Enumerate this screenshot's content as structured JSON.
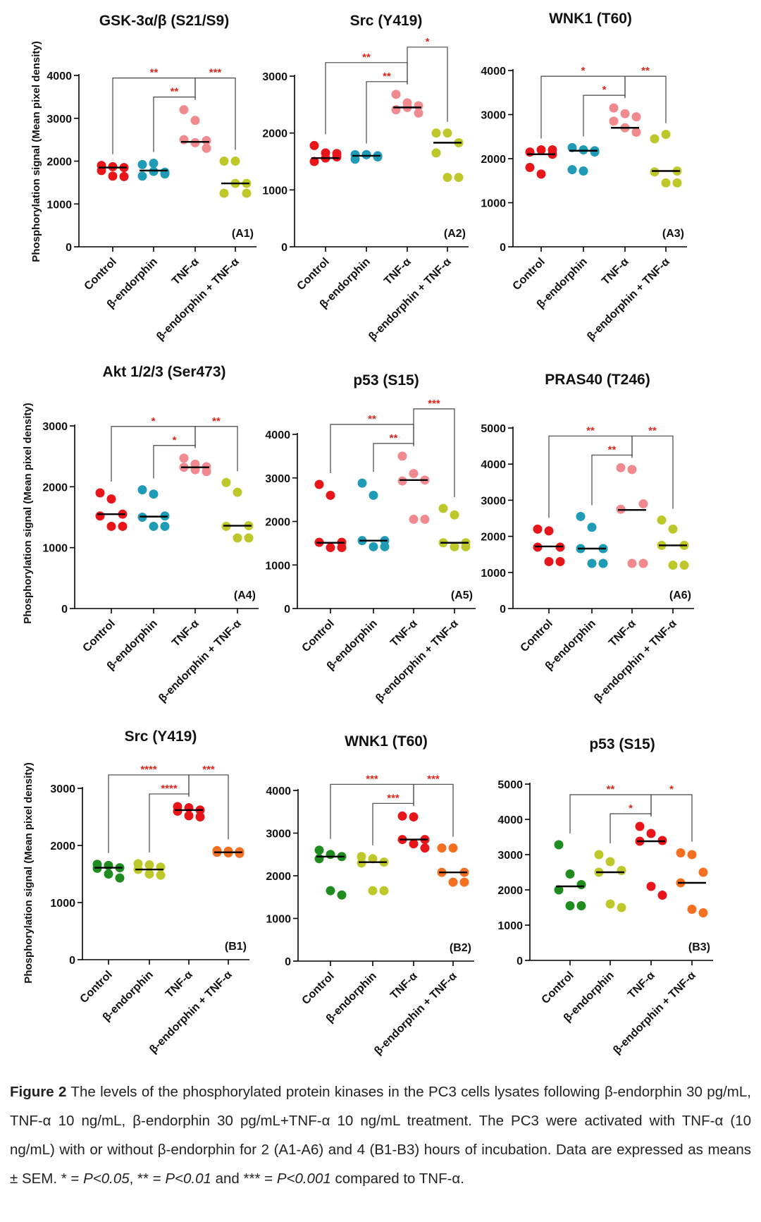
{
  "figure": {
    "ylabel": "Phosphorylation signal (Mean pixel density)",
    "categories": [
      "Control",
      "β-endorphin",
      "TNF-α",
      "β-endorphin + TNF-α"
    ]
  },
  "caption": {
    "label": "Figure 2",
    "line1": " The levels of the phosphorylated protein kinases in the PC3 cells lysates following β-endorphin 30 pg/mL, TNF-α 10 ng/mL, β-endorphin 30 pg/mL+TNF-α 10 ng/mL treatment. The PC3 were activated with TNF-α (10 ng/mL) with or without β-endorphin for 2 (A1-A6) and 4 (B1-B3) hours of incubation. Data are expressed as means ± SEM. * = ",
    "p05": "P<0.05",
    "sep1": ", ** = ",
    "p01": "P<0.01",
    "sep2": " and *** = ",
    "p001": "P<0.001",
    "end": " compared to TNF-α."
  },
  "colors": {
    "A_series": [
      "#e8161b",
      "#1f9bb6",
      "#f08a8e",
      "#bfc82a"
    ],
    "B_series": [
      "#1f8c1f",
      "#bfc82a",
      "#e8161b",
      "#f36f21"
    ],
    "significance": "#d9261c",
    "axis": "#000000"
  },
  "chart_data": [
    {
      "id": "A1",
      "type": "scatter",
      "title": "GSK-3α/β (S21/S9)",
      "panel_label": "(A1)",
      "ylim": [
        0,
        4000
      ],
      "yticks": [
        0,
        1000,
        2000,
        3000,
        4000
      ],
      "medians": [
        1850,
        1780,
        2450,
        1480
      ],
      "series": [
        {
          "values": [
            1780,
            1870,
            1850,
            1900,
            1650,
            1640
          ]
        },
        {
          "values": [
            1920,
            1760,
            1740,
            1650,
            1950,
            1700
          ]
        },
        {
          "values": [
            3200,
            2950,
            2480,
            2500,
            2430,
            2300
          ]
        },
        {
          "values": [
            2000,
            2000,
            1480,
            1250,
            1480,
            1250
          ]
        }
      ],
      "brackets": [
        {
          "from": 1,
          "to": 3,
          "level": 1,
          "stars": "**"
        },
        {
          "from": 2,
          "to": 3,
          "level": 0,
          "stars": "**"
        },
        {
          "from": 3,
          "to": 4,
          "level": 1,
          "stars": "***"
        }
      ]
    },
    {
      "id": "A2",
      "type": "scatter",
      "title": "Src (Y419)",
      "panel_label": "(A2)",
      "ylim": [
        0,
        3000
      ],
      "yticks": [
        0,
        1000,
        2000,
        3000
      ],
      "medians": [
        1560,
        1600,
        2450,
        1830
      ],
      "series": [
        {
          "values": [
            1780,
            1650,
            1580,
            1500,
            1560,
            1640
          ]
        },
        {
          "values": [
            1620,
            1620,
            1580,
            1540,
            1620,
            1600
          ]
        },
        {
          "values": [
            2680,
            2530,
            2480,
            2410,
            2450,
            2350
          ]
        },
        {
          "values": [
            2000,
            2000,
            1830,
            1650,
            1220,
            1220
          ]
        }
      ],
      "brackets": [
        {
          "from": 1,
          "to": 3,
          "level": 1,
          "stars": "**"
        },
        {
          "from": 2,
          "to": 3,
          "level": 0,
          "stars": "**"
        },
        {
          "from": 3,
          "to": 4,
          "level": 2,
          "stars": "*"
        }
      ]
    },
    {
      "id": "A3",
      "type": "scatter",
      "title": "WNK1 (T60)",
      "panel_label": "(A3)",
      "ylim": [
        0,
        4000
      ],
      "yticks": [
        0,
        1000,
        2000,
        3000,
        4000
      ],
      "medians": [
        2100,
        2180,
        2700,
        1720
      ],
      "series": [
        {
          "values": [
            2150,
            2200,
            2200,
            1800,
            1650,
            2100
          ]
        },
        {
          "values": [
            2250,
            2200,
            2150,
            1750,
            1720,
            2180
          ]
        },
        {
          "values": [
            3150,
            3020,
            2950,
            2850,
            2700,
            2600
          ]
        },
        {
          "values": [
            2450,
            2550,
            1720,
            1700,
            1450,
            1450
          ]
        }
      ],
      "brackets": [
        {
          "from": 1,
          "to": 3,
          "level": 1,
          "stars": "*"
        },
        {
          "from": 2,
          "to": 3,
          "level": 0,
          "stars": "*"
        },
        {
          "from": 3,
          "to": 4,
          "level": 1,
          "stars": "**"
        }
      ]
    },
    {
      "id": "A4",
      "type": "scatter",
      "title": "Akt 1/2/3 (Ser473)",
      "panel_label": "(A4)",
      "ylim": [
        0,
        3000
      ],
      "yticks": [
        0,
        1000,
        2000,
        3000
      ],
      "medians": [
        1550,
        1510,
        2320,
        1360
      ],
      "series": [
        {
          "values": [
            1900,
            1800,
            1550,
            1520,
            1350,
            1350
          ]
        },
        {
          "values": [
            1950,
            1880,
            1520,
            1500,
            1350,
            1350
          ]
        },
        {
          "values": [
            2470,
            2370,
            2330,
            2320,
            2280,
            2250
          ]
        },
        {
          "values": [
            2070,
            1910,
            1360,
            1350,
            1160,
            1160
          ]
        }
      ],
      "brackets": [
        {
          "from": 1,
          "to": 3,
          "level": 1,
          "stars": "*"
        },
        {
          "from": 2,
          "to": 3,
          "level": 0,
          "stars": "*"
        },
        {
          "from": 3,
          "to": 4,
          "level": 1,
          "stars": "**"
        }
      ]
    },
    {
      "id": "A5",
      "type": "scatter",
      "title": "p53 (S15)",
      "panel_label": "(A5)",
      "ylim": [
        0,
        4000
      ],
      "yticks": [
        0,
        1000,
        2000,
        3000,
        4000
      ],
      "medians": [
        1510,
        1560,
        2950,
        1510
      ],
      "series": [
        {
          "values": [
            2850,
            2600,
            1520,
            1520,
            1400,
            1400
          ]
        },
        {
          "values": [
            2880,
            2600,
            1560,
            1560,
            1420,
            1420
          ]
        },
        {
          "values": [
            3500,
            3100,
            2950,
            2930,
            2050,
            2050
          ]
        },
        {
          "values": [
            2300,
            2150,
            1510,
            1510,
            1420,
            1420
          ]
        }
      ],
      "brackets": [
        {
          "from": 1,
          "to": 3,
          "level": 1,
          "stars": "**"
        },
        {
          "from": 2,
          "to": 3,
          "level": 0,
          "stars": "**"
        },
        {
          "from": 3,
          "to": 4,
          "level": 2,
          "stars": "***"
        }
      ]
    },
    {
      "id": "A6",
      "type": "scatter",
      "title": "PRAS40 (T246)",
      "panel_label": "(A6)",
      "ylim": [
        0,
        5000
      ],
      "yticks": [
        0,
        1000,
        2000,
        3000,
        4000,
        5000
      ],
      "medians": [
        1720,
        1660,
        2730,
        1750
      ],
      "series": [
        {
          "values": [
            2200,
            2150,
            1700,
            1700,
            1300,
            1300
          ]
        },
        {
          "values": [
            2550,
            2250,
            1660,
            1660,
            1250,
            1250
          ]
        },
        {
          "values": [
            3900,
            3850,
            2900,
            2750,
            1250,
            1250
          ]
        },
        {
          "values": [
            2450,
            2200,
            1750,
            1750,
            1200,
            1200
          ]
        }
      ],
      "brackets": [
        {
          "from": 1,
          "to": 3,
          "level": 1,
          "stars": "**"
        },
        {
          "from": 2,
          "to": 3,
          "level": 0,
          "stars": "**"
        },
        {
          "from": 3,
          "to": 4,
          "level": 1,
          "stars": "**"
        }
      ]
    },
    {
      "id": "B1",
      "type": "scatter",
      "title": "Src (Y419)",
      "panel_label": "(B1)",
      "ylim": [
        0,
        3000
      ],
      "yticks": [
        0,
        1000,
        2000,
        3000
      ],
      "medians": [
        1610,
        1580,
        2620,
        1880
      ],
      "series": [
        {
          "values": [
            1670,
            1650,
            1610,
            1600,
            1500,
            1430
          ]
        },
        {
          "values": [
            1680,
            1660,
            1620,
            1580,
            1500,
            1480
          ]
        },
        {
          "values": [
            2680,
            2660,
            2620,
            2600,
            2520,
            2500
          ]
        },
        {
          "values": [
            1910,
            1900,
            1890,
            1880,
            1870,
            1860
          ]
        }
      ],
      "brackets": [
        {
          "from": 1,
          "to": 3,
          "level": 1,
          "stars": "****"
        },
        {
          "from": 2,
          "to": 3,
          "level": 0,
          "stars": "****"
        },
        {
          "from": 3,
          "to": 4,
          "level": 1,
          "stars": "***"
        }
      ]
    },
    {
      "id": "B2",
      "type": "scatter",
      "title": "WNK1 (T60)",
      "panel_label": "(B2)",
      "ylim": [
        0,
        4000
      ],
      "yticks": [
        0,
        1000,
        2000,
        3000,
        4000
      ],
      "medians": [
        2450,
        2320,
        2850,
        2080
      ],
      "series": [
        {
          "values": [
            2600,
            2500,
            2450,
            2400,
            1650,
            1550
          ]
        },
        {
          "values": [
            2450,
            2400,
            2320,
            2300,
            1650,
            1650
          ]
        },
        {
          "values": [
            3400,
            3380,
            2850,
            2850,
            2750,
            2650
          ]
        },
        {
          "values": [
            2650,
            2650,
            2080,
            2080,
            1850,
            1850
          ]
        }
      ],
      "brackets": [
        {
          "from": 1,
          "to": 3,
          "level": 1,
          "stars": "***"
        },
        {
          "from": 2,
          "to": 3,
          "level": 0,
          "stars": "***"
        },
        {
          "from": 3,
          "to": 4,
          "level": 1,
          "stars": "***"
        }
      ]
    },
    {
      "id": "B3",
      "type": "scatter",
      "title": "p53 (S15)",
      "panel_label": "(B3)",
      "ylim": [
        0,
        5000
      ],
      "yticks": [
        0,
        1000,
        2000,
        3000,
        4000,
        5000
      ],
      "medians": [
        2100,
        2500,
        3380,
        2200
      ],
      "series": [
        {
          "values": [
            3280,
            2450,
            2150,
            2000,
            1550,
            1550
          ]
        },
        {
          "values": [
            3000,
            2800,
            2550,
            2500,
            1600,
            1500
          ]
        },
        {
          "values": [
            3800,
            3600,
            3400,
            3380,
            2100,
            1850
          ]
        },
        {
          "values": [
            3050,
            3000,
            2500,
            2200,
            1450,
            1350
          ]
        }
      ],
      "brackets": [
        {
          "from": 1,
          "to": 3,
          "level": 1,
          "stars": "**"
        },
        {
          "from": 2,
          "to": 3,
          "level": 0,
          "stars": "*"
        },
        {
          "from": 3,
          "to": 4,
          "level": 1,
          "stars": "*"
        }
      ]
    }
  ]
}
